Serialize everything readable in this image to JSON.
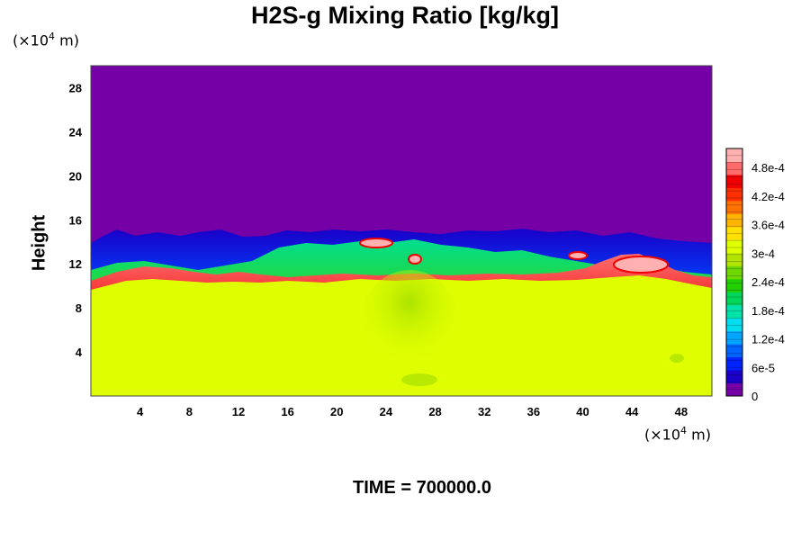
{
  "chart_data": {
    "type": "heatmap",
    "title": "H2S-g Mixing Ratio [kg/kg]",
    "ylabel": "Height",
    "x_unit": {
      "prefix": "(×10",
      "exp": "4",
      "suffix": " m)"
    },
    "y_unit": {
      "prefix": "(×10",
      "exp": "4",
      "suffix": " m)"
    },
    "xlim": [
      0,
      50.5
    ],
    "ylim": [
      0,
      30
    ],
    "x_ticks": [
      4,
      8,
      12,
      16,
      20,
      24,
      28,
      32,
      36,
      40,
      44,
      48
    ],
    "y_ticks": [
      4,
      8,
      12,
      16,
      20,
      24,
      28
    ],
    "colorbar": {
      "range": [
        0,
        0.00052
      ],
      "tick_labels": [
        "0",
        "6e-5",
        "1.2e-4",
        "1.8e-4",
        "2.4e-4",
        "3e-4",
        "3.6e-4",
        "4.2e-4",
        "4.8e-4"
      ],
      "tick_values": [
        0,
        6e-05,
        0.00012,
        0.00018,
        0.00024,
        0.0003,
        0.00036,
        0.00042,
        0.00048
      ],
      "colors": [
        "#7400a6",
        "#1a00c8",
        "#0022ff",
        "#0064ff",
        "#00a6ff",
        "#00ddee",
        "#00e3a8",
        "#00d65a",
        "#22d000",
        "#6fd800",
        "#b3e400",
        "#dfff00",
        "#ffe000",
        "#ffb400",
        "#ff7200",
        "#ff3000",
        "#f00000",
        "#ff6a6a",
        "#ffb0b0"
      ]
    },
    "regions": {
      "upper_value": 0,
      "lower_value": 0.00035,
      "interface_band": "blue-to-green transition between heights 11 and 15",
      "red_layer_height": 10.5
    }
  },
  "footer": {
    "time_label": "TIME = 700000.0"
  }
}
